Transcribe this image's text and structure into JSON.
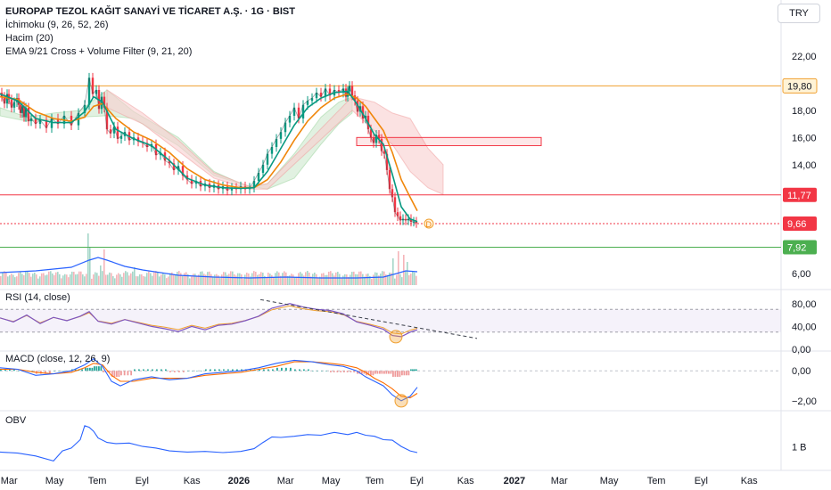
{
  "header": {
    "title": "EUROPAP TEZOL KAĞIT SANAYİ VE TİCARET A.Ş. · 1G · BIST",
    "indicators": [
      "İchimoku (9, 26, 52, 26)",
      "Hacim (20)",
      "EMA 9/21 Cross + Volume Filter (9, 21, 20)"
    ],
    "currency": "TRY"
  },
  "colors": {
    "candle_up": "#089981",
    "candle_down": "#f23645",
    "ema_fast": "#089981",
    "ema_slow": "#f0860a",
    "cloud_up": "#c8e6c9",
    "cloud_down": "#f9cfcf",
    "rsi": "#7e57c2",
    "rsi_ma": "#f0a030",
    "macd": "#2962ff",
    "signal": "#ff6d00",
    "obv": "#2962ff",
    "line_orange": "#f0a030",
    "line_red": "#f23645",
    "line_green": "#4caf50"
  },
  "chart_data": [
    {
      "type": "line",
      "pane": "price",
      "y_ticks": [
        "22,00",
        "20,00",
        "18,00",
        "16,00",
        "14,00",
        "12,00",
        "10,00",
        "8,00",
        "6,00"
      ],
      "ylim": [
        5,
        23.5
      ],
      "x_ticks": [
        "Mar",
        "May",
        "Tem",
        "Eyl",
        "Kas",
        "2026",
        "Mar",
        "May",
        "Tem",
        "Eyl",
        "Kas",
        "2027",
        "Mar",
        "May",
        "Tem",
        "Eyl",
        "Kas"
      ],
      "horizontal_lines": [
        {
          "value": 19.8,
          "label": "19,80",
          "color": "#f0a030"
        },
        {
          "value": 11.77,
          "label": "11,77",
          "color": "#f23645"
        },
        {
          "value": 9.66,
          "label": "9,66",
          "color": "#f23645"
        },
        {
          "value": 7.92,
          "label": "7,92",
          "color": "#4caf50"
        }
      ],
      "close_series": {
        "x": [
          0,
          2,
          5,
          8,
          10,
          13,
          16,
          19,
          21,
          23,
          25,
          27,
          29,
          32,
          35,
          40,
          45,
          52,
          58,
          65,
          72,
          80,
          88,
          95,
          100,
          104,
          108,
          111,
          114,
          117,
          120,
          124,
          128,
          132,
          136,
          140,
          145,
          150,
          155,
          160,
          165,
          170,
          175,
          180,
          185,
          190,
          195,
          200,
          205,
          210,
          215,
          220,
          225,
          230,
          235,
          240,
          245,
          250,
          255,
          260,
          265,
          270,
          275,
          280,
          285,
          290,
          295,
          300,
          305,
          310,
          315,
          320,
          325,
          330,
          335,
          340,
          345,
          350,
          355,
          360,
          365,
          370,
          375,
          380,
          385,
          388,
          390,
          392,
          395,
          398,
          401,
          404,
          407,
          410,
          413,
          416,
          419,
          422,
          425,
          428,
          431,
          434,
          437,
          440,
          443,
          446,
          449,
          452,
          455,
          458,
          461,
          464,
          467
        ],
        "y": [
          19.3,
          19.0,
          18.5,
          19.2,
          18.8,
          18.2,
          18.6,
          18.9,
          18.4,
          17.8,
          18.3,
          17.5,
          18.2,
          17.2,
          17.4,
          17.0,
          17.3,
          16.7,
          17.4,
          17.0,
          17.6,
          16.9,
          17.8,
          18.4,
          20.4,
          19.2,
          19.5,
          18.1,
          19.0,
          18.2,
          16.6,
          16.3,
          16.8,
          15.9,
          16.1,
          16.4,
          15.8,
          16.0,
          15.7,
          15.6,
          15.3,
          15.5,
          14.7,
          14.9,
          14.3,
          14.1,
          13.6,
          13.9,
          13.2,
          12.9,
          12.6,
          12.8,
          12.4,
          12.6,
          12.3,
          12.5,
          12.2,
          12.4,
          12.1,
          12.3,
          12.2,
          12.4,
          12.2,
          12.3,
          12.8,
          13.4,
          14.0,
          14.8,
          15.3,
          15.9,
          16.4,
          17.1,
          17.6,
          18.2,
          17.4,
          18.4,
          18.7,
          18.9,
          19.3,
          19.0,
          19.6,
          19.1,
          19.5,
          19.3,
          19.6,
          19.0,
          19.4,
          19.8,
          19.1,
          18.7,
          17.9,
          18.3,
          17.4,
          17.6,
          16.6,
          16.0,
          15.6,
          16.2,
          15.9,
          15.0,
          14.8,
          13.6,
          12.2,
          11.6,
          10.5,
          10.2,
          9.9,
          10.0,
          9.9,
          10.0,
          9.8,
          9.8,
          9.7
        ]
      },
      "ema_fast": {
        "x": [
          0,
          20,
          40,
          60,
          80,
          95,
          105,
          115,
          130,
          150,
          170,
          190,
          210,
          230,
          250,
          270,
          285,
          300,
          315,
          330,
          345,
          360,
          375,
          390,
          400,
          410,
          420,
          430,
          440,
          450,
          460,
          468
        ],
        "y": [
          19.2,
          18.7,
          17.4,
          17.1,
          17.1,
          17.9,
          19.0,
          18.6,
          16.6,
          15.9,
          15.4,
          14.3,
          13.0,
          12.5,
          12.3,
          12.25,
          12.3,
          13.5,
          15.2,
          16.9,
          18.2,
          18.9,
          19.3,
          19.4,
          18.5,
          17.4,
          16.2,
          15.5,
          13.3,
          10.9,
          10.0,
          9.8
        ]
      },
      "ema_slow": {
        "x": [
          0,
          20,
          40,
          60,
          80,
          95,
          105,
          115,
          130,
          150,
          170,
          190,
          210,
          230,
          250,
          270,
          285,
          300,
          315,
          330,
          345,
          360,
          375,
          390,
          400,
          410,
          420,
          430,
          440,
          450,
          460,
          468
        ],
        "y": [
          19.0,
          18.8,
          17.9,
          17.4,
          17.2,
          17.5,
          18.3,
          18.5,
          17.4,
          16.4,
          15.8,
          14.9,
          13.7,
          12.9,
          12.5,
          12.3,
          12.3,
          12.9,
          14.2,
          15.8,
          17.2,
          18.2,
          18.9,
          19.2,
          18.9,
          18.3,
          17.4,
          16.5,
          14.9,
          12.9,
          11.6,
          10.6
        ]
      },
      "rectangle_zone": {
        "x_start": 400,
        "x_end": 607,
        "y_top": 16.0,
        "y_bottom": 15.4
      },
      "annotation": "D"
    },
    {
      "type": "line",
      "pane": "rsi",
      "label": "RSI (14, close)",
      "y_ticks": [
        "80,00",
        "40,00",
        "0,00"
      ],
      "ylim": [
        0,
        100
      ],
      "band": [
        30,
        70
      ],
      "x": [
        0,
        15,
        30,
        45,
        60,
        75,
        90,
        100,
        110,
        125,
        140,
        155,
        170,
        185,
        200,
        215,
        230,
        245,
        260,
        275,
        290,
        305,
        315,
        325,
        340,
        355,
        370,
        385,
        400,
        415,
        430,
        440,
        450,
        460,
        468
      ],
      "y": [
        55,
        48,
        60,
        45,
        56,
        50,
        58,
        66,
        49,
        44,
        52,
        46,
        40,
        36,
        31,
        40,
        34,
        42,
        44,
        50,
        58,
        72,
        76,
        80,
        74,
        70,
        68,
        62,
        48,
        42,
        35,
        24,
        22,
        30,
        34
      ],
      "trendline": {
        "x1": 292,
        "y1": 87,
        "x2": 535,
        "y2": 19
      }
    },
    {
      "type": "line",
      "pane": "macd",
      "label": "MACD (close, 12, 26, 9)",
      "y_ticks": [
        "0,00",
        "−2,00"
      ],
      "ylim": [
        -2.6,
        1.2
      ],
      "x": [
        0,
        20,
        40,
        60,
        80,
        95,
        105,
        115,
        125,
        135,
        150,
        170,
        190,
        210,
        230,
        250,
        270,
        290,
        310,
        330,
        350,
        370,
        385,
        400,
        410,
        420,
        430,
        440,
        450,
        460,
        468
      ],
      "macd": [
        0.2,
        0.1,
        -0.3,
        -0.2,
        0.0,
        0.4,
        0.8,
        0.3,
        -0.7,
        -1.0,
        -0.6,
        -0.4,
        -0.6,
        -0.5,
        -0.2,
        -0.1,
        0.0,
        0.2,
        0.5,
        0.7,
        0.6,
        0.4,
        0.3,
        0.0,
        -0.4,
        -0.7,
        -1.0,
        -1.6,
        -2.0,
        -1.7,
        -1.1
      ],
      "signal": [
        0.1,
        0.1,
        -0.1,
        -0.2,
        -0.1,
        0.2,
        0.5,
        0.4,
        -0.3,
        -0.7,
        -0.7,
        -0.5,
        -0.5,
        -0.5,
        -0.3,
        -0.2,
        -0.1,
        0.1,
        0.3,
        0.6,
        0.6,
        0.5,
        0.4,
        0.2,
        -0.1,
        -0.5,
        -0.8,
        -1.2,
        -1.7,
        -1.8,
        -1.5
      ]
    },
    {
      "type": "line",
      "pane": "obv",
      "label": "OBV",
      "y_ticks": [
        "1 B"
      ],
      "ylim": [
        0,
        10
      ],
      "x": [
        0,
        20,
        40,
        60,
        70,
        80,
        90,
        95,
        100,
        105,
        110,
        120,
        130,
        145,
        160,
        175,
        190,
        210,
        230,
        250,
        270,
        285,
        295,
        305,
        315,
        330,
        345,
        360,
        375,
        390,
        400,
        410,
        420,
        430,
        440,
        450,
        460,
        468
      ],
      "y": [
        2.8,
        2.6,
        2.1,
        1.2,
        3.0,
        3.5,
        5.0,
        7.5,
        7.2,
        6.5,
        5.3,
        4.5,
        4.3,
        4.4,
        3.8,
        3.5,
        3.0,
        2.8,
        2.9,
        2.7,
        2.9,
        3.4,
        4.5,
        5.5,
        5.4,
        5.6,
        5.9,
        5.8,
        6.3,
        5.9,
        6.3,
        5.8,
        5.6,
        5.0,
        4.9,
        3.8,
        3.0,
        2.7
      ]
    }
  ]
}
